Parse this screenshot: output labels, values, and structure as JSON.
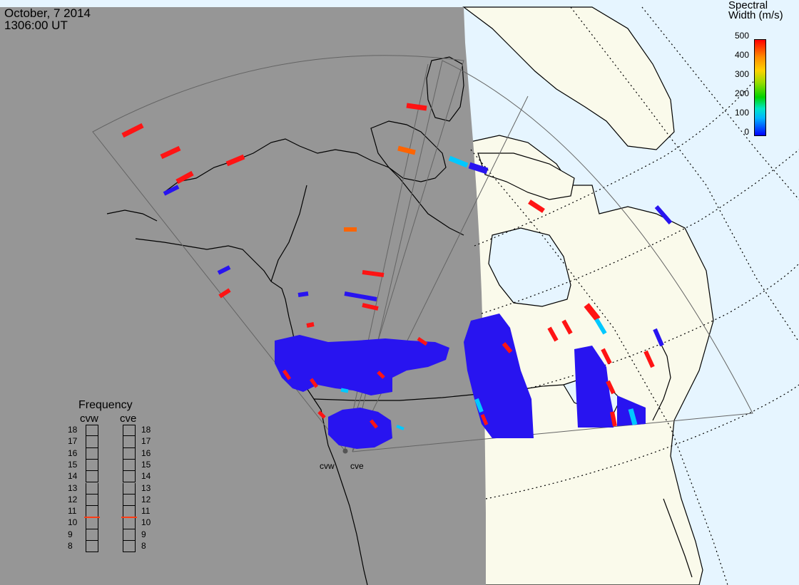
{
  "header": {
    "date": "October, 7 2014",
    "time": "1306:00 UT"
  },
  "colorbar": {
    "title_line1": "Spectral",
    "title_line2": "Width (m/s)",
    "ticks": [
      "500",
      "400",
      "300",
      "200",
      "100",
      "0"
    ],
    "colors": [
      "#0000ff",
      "#00b4ff",
      "#00e6c8",
      "#00d200",
      "#96dc00",
      "#ffd200",
      "#ff8c00",
      "#ff0000"
    ]
  },
  "frequency_panel": {
    "title": "Frequency",
    "radars": [
      "cvw",
      "cve"
    ],
    "levels": [
      "18",
      "17",
      "16",
      "15",
      "14",
      "13",
      "12",
      "11",
      "10",
      "9",
      "8"
    ],
    "cvw_value": 10.5,
    "cve_value": 10.5,
    "marker_color": "#ff3c14"
  },
  "sites": [
    "cvw",
    "cve"
  ],
  "map_colors": {
    "night": "#969696",
    "land_day": "#fafaeb",
    "ocean_day": "#e6f5ff",
    "coastline": "#000000",
    "fov": "#646464",
    "grid_dotted": "#000000",
    "scatter_low": "#2814f0",
    "scatter_mid": "#00c8ff",
    "scatter_high": "#ff1414",
    "scatter_orange": "#ff6400"
  }
}
